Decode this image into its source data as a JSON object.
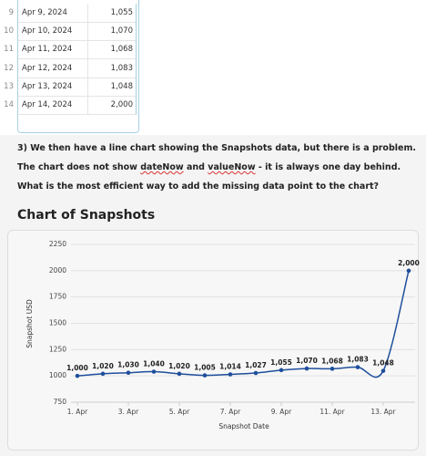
{
  "table": {
    "rows": [
      [
        "9",
        "Apr 9, 2024",
        "1,055"
      ],
      [
        "10",
        "Apr 10, 2024",
        "1,070"
      ],
      [
        "11",
        "Apr 11, 2024",
        "1,068"
      ],
      [
        "12",
        "Apr 12, 2024",
        "1,083"
      ],
      [
        "13",
        "Apr 13, 2024",
        "1,048"
      ],
      [
        "14",
        "Apr 14, 2024",
        "2,000"
      ]
    ],
    "add_row": "+"
  },
  "paragraphs": [
    [
      "3) We then have a line chart showing the Snapshots data, but there is a problem."
    ],
    [
      "The chart does not show ",
      "dateNow",
      " and ",
      "valueNow",
      " - it is always one day behind."
    ],
    [
      "What is the most efficient way to add the missing data point to the chart?"
    ]
  ],
  "chart_data": {
    "type": "line",
    "title": "Chart of Snapshots",
    "x_label": "Snapshot Date",
    "y_label": "Snapshot USD",
    "categories": [
      "1. Apr",
      null,
      "3. Apr",
      null,
      "5. Apr",
      null,
      "7. Apr",
      null,
      "9. Apr",
      null,
      "11. Apr",
      null,
      "13. Apr",
      null
    ],
    "series": [
      {
        "color": "#1f4e9c",
        "values": [
          1000,
          1020,
          1030,
          1040,
          1020,
          1005,
          1014,
          1027,
          1055,
          1070,
          1068,
          1083,
          1048,
          2000
        ],
        "value_labels": [
          "1,000",
          "1,020",
          "1,030",
          "1,040",
          "1,020",
          "1,005",
          "1,014",
          "1,027",
          "1,055",
          "1,070",
          "1,068",
          "1,083",
          "1,048",
          "2,000"
        ]
      }
    ],
    "ylim": [
      750,
      2250
    ],
    "yticks": [
      750,
      1000,
      1250,
      1500,
      1750,
      2000,
      2250
    ],
    "grid": true
  }
}
